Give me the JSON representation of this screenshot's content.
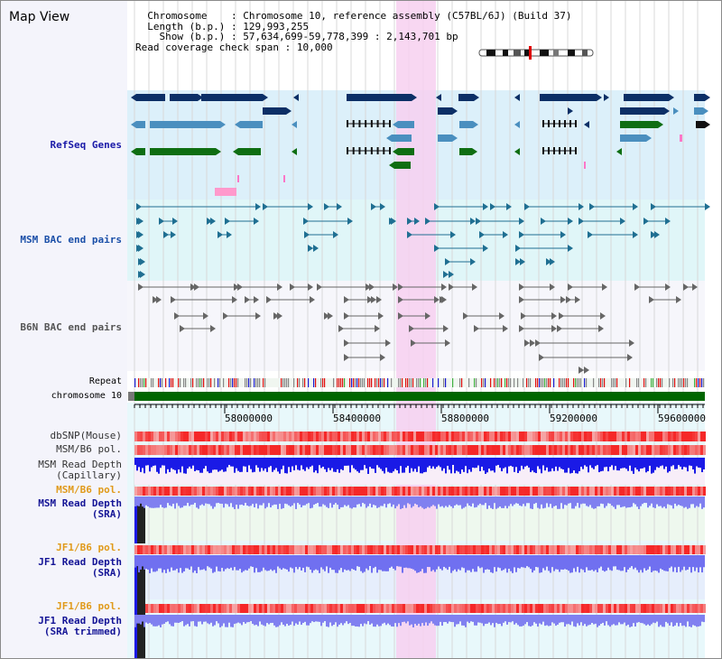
{
  "title": "Map View",
  "info": {
    "chromosome_key": "Chromosome",
    "chromosome_val": "Chromosome 10, reference assembly (C57BL/6J) (Build 37)",
    "length_key": "Length (b.p.)",
    "length_val": "129,993,255",
    "show_key": "Show (b.p.)",
    "show_val": "57,634,699-59,778,399 : 2,143,701 bp",
    "span_key": "Read coverage check span",
    "span_val": "10,000"
  },
  "tracks": {
    "refseq": "RefSeq Genes",
    "msm_bac": "MSM BAC end pairs",
    "b6n_bac": "B6N BAC end pairs",
    "repeat": "Repeat",
    "chromosome": "chromosome 10",
    "dbsnp": "dbSNP(Mouse)",
    "msm_pol_1": "MSM/B6 pol.",
    "msm_depth_cap_1": "MSM Read Depth",
    "msm_depth_cap_2": "(Capillary)",
    "msm_pol_2": "MSM/B6 pol.",
    "msm_depth_sra_1": "MSM Read Depth",
    "msm_depth_sra_2": "(SRA)",
    "jf1_pol_1": "JF1/B6 pol.",
    "jf1_depth_sra_1": "JF1 Read Depth",
    "jf1_depth_sra_2": "(SRA)",
    "jf1_pol_2": "JF1/B6 pol.",
    "jf1_depth_trim_1": "JF1 Read Depth",
    "jf1_depth_trim_2": "(SRA trimmed)"
  },
  "ruler": {
    "ticks": [
      "58000000",
      "58400000",
      "58800000",
      "59200000",
      "59600000"
    ]
  },
  "colors": {
    "refseq_label": "#1a1aa8",
    "msm_label": "#1a4fa8",
    "orange_label": "#e09a1a",
    "navy_label": "#141496",
    "highlight": "#f7d0f0",
    "chromosome_bar": "#006600"
  }
}
